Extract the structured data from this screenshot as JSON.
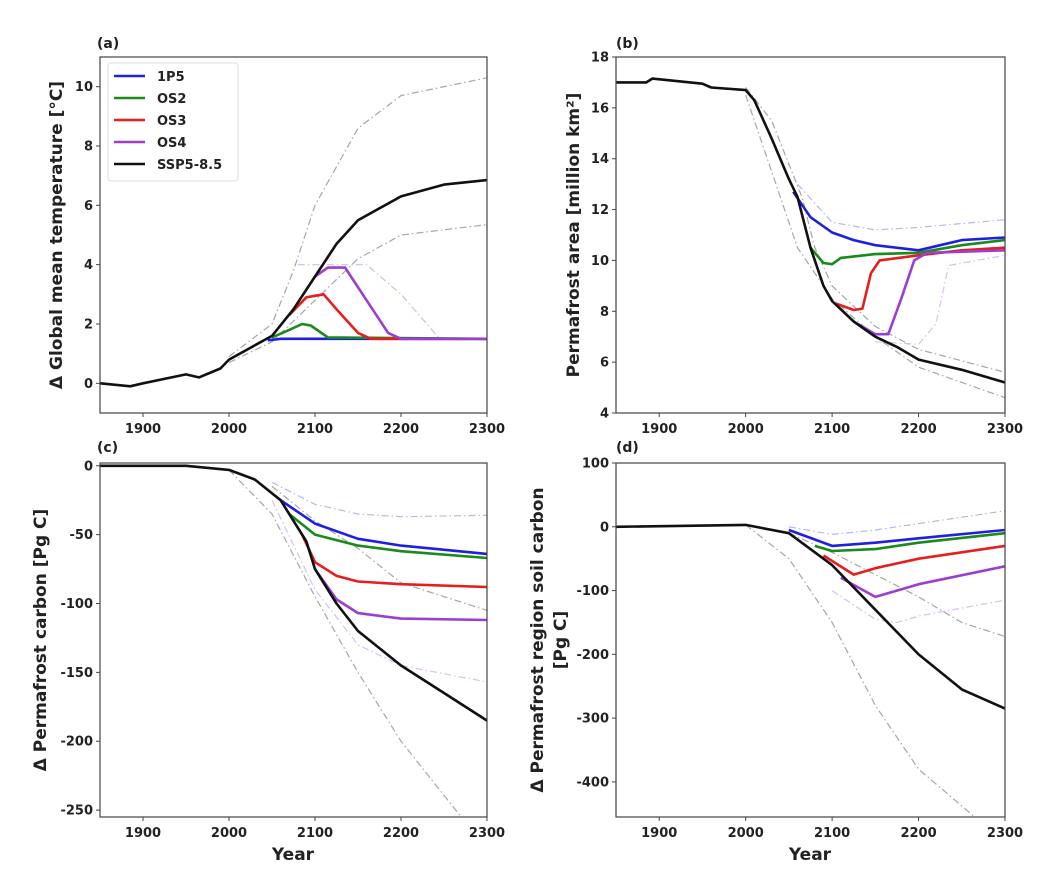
{
  "chart_data": [
    {
      "id": "a",
      "type": "line",
      "panel_label": "(a)",
      "ylabel": "Δ Global mean temperature [°C]",
      "xlabel": "",
      "xlim": [
        1850,
        2300
      ],
      "ylim": [
        -1,
        11
      ],
      "xticks": [
        1900,
        2000,
        2100,
        2200,
        2300
      ],
      "yticks": [
        0,
        2,
        4,
        6,
        8,
        10
      ],
      "legend": {
        "placement": "top-left",
        "entries": [
          {
            "name": "1P5",
            "color": "#1f1fe0"
          },
          {
            "name": "OS2",
            "color": "#1a8a1a"
          },
          {
            "name": "OS3",
            "color": "#e61e1e"
          },
          {
            "name": "OS4",
            "color": "#9a3fd0"
          },
          {
            "name": "SSP5-8.5",
            "color": "#111111"
          }
        ]
      },
      "series": [
        {
          "name": "SSP5-8.5 upper",
          "style": "dashed",
          "color": "#888888",
          "x": [
            2000,
            2050,
            2075,
            2100,
            2150,
            2200,
            2300
          ],
          "y": [
            0.9,
            2,
            3.8,
            6,
            8.6,
            9.7,
            10.3
          ]
        },
        {
          "name": "SSP5-8.5 lower",
          "style": "dashed",
          "color": "#888888",
          "x": [
            2000,
            2050,
            2100,
            2150,
            2200,
            2300
          ],
          "y": [
            0.7,
            1.4,
            2.8,
            4.2,
            5,
            5.35
          ]
        },
        {
          "name": "OS4 upper",
          "style": "dashed",
          "color": "#c9a0e8",
          "x": [
            2080,
            2160,
            2200,
            2245,
            2300
          ],
          "y": [
            4,
            4,
            3,
            1.5,
            1.5
          ]
        },
        {
          "name": "1P5",
          "style": "solid",
          "color": "#1f1fe0",
          "x": [
            2045,
            2060,
            2300
          ],
          "y": [
            1.45,
            1.5,
            1.5
          ]
        },
        {
          "name": "OS2",
          "style": "solid",
          "color": "#1a8a1a",
          "x": [
            2050,
            2070,
            2085,
            2095,
            2115,
            2300
          ],
          "y": [
            1.55,
            1.8,
            2.0,
            1.95,
            1.55,
            1.5
          ]
        },
        {
          "name": "OS3",
          "style": "solid",
          "color": "#e61e1e",
          "x": [
            2070,
            2090,
            2110,
            2125,
            2150,
            2165,
            2300
          ],
          "y": [
            2.3,
            2.9,
            3.0,
            2.5,
            1.7,
            1.5,
            1.5
          ]
        },
        {
          "name": "OS4",
          "style": "solid",
          "color": "#9a3fd0",
          "x": [
            2100,
            2115,
            2135,
            2160,
            2185,
            2200,
            2300
          ],
          "y": [
            3.6,
            3.9,
            3.9,
            2.8,
            1.7,
            1.5,
            1.5
          ]
        },
        {
          "name": "SSP5-8.5",
          "style": "solid",
          "color": "#111111",
          "x": [
            1850,
            1885,
            1900,
            1950,
            1965,
            1990,
            2000,
            2025,
            2050,
            2075,
            2100,
            2125,
            2150,
            2200,
            2250,
            2300
          ],
          "y": [
            0,
            -0.1,
            0,
            0.3,
            0.2,
            0.5,
            0.8,
            1.2,
            1.6,
            2.5,
            3.6,
            4.7,
            5.5,
            6.3,
            6.7,
            6.85
          ]
        }
      ]
    },
    {
      "id": "b",
      "type": "line",
      "panel_label": "(b)",
      "ylabel": "Permafrost area [million km²]",
      "xlabel": "",
      "xlim": [
        1850,
        2300
      ],
      "ylim": [
        4,
        18
      ],
      "xticks": [
        1900,
        2000,
        2100,
        2200,
        2300
      ],
      "yticks": [
        4,
        6,
        8,
        10,
        12,
        14,
        16,
        18
      ],
      "series": [
        {
          "name": "SSP5-8.5 upper",
          "style": "dashed",
          "color": "#888888",
          "x": [
            2000,
            2030,
            2065,
            2080,
            2100,
            2150,
            2200,
            2300
          ],
          "y": [
            16.8,
            15.5,
            12.5,
            10.5,
            9,
            7.4,
            6.5,
            5.6
          ]
        },
        {
          "name": "SSP5-8.5 lower",
          "style": "dashed",
          "color": "#888888",
          "x": [
            2000,
            2030,
            2060,
            2100,
            2150,
            2200,
            2300
          ],
          "y": [
            16.5,
            13.5,
            10.5,
            8.5,
            7,
            5.8,
            4.6
          ]
        },
        {
          "name": "1P5 upper",
          "style": "dashed",
          "color": "#9aa0f0",
          "x": [
            2060,
            2100,
            2150,
            2200,
            2300
          ],
          "y": [
            13,
            11.5,
            11.2,
            11.3,
            11.6
          ]
        },
        {
          "name": "OS4 late",
          "style": "dashed",
          "color": "#d0a8ec",
          "x": [
            2150,
            2200,
            2220,
            2235,
            2300
          ],
          "y": [
            6.8,
            6.7,
            7.5,
            9.8,
            10.2
          ]
        },
        {
          "name": "1P5",
          "style": "solid",
          "color": "#1f1fe0",
          "x": [
            2055,
            2075,
            2100,
            2125,
            2150,
            2200,
            2225,
            2250,
            2300
          ],
          "y": [
            12.7,
            11.7,
            11.1,
            10.8,
            10.6,
            10.4,
            10.6,
            10.8,
            10.9
          ]
        },
        {
          "name": "OS2",
          "style": "solid",
          "color": "#1a8a1a",
          "x": [
            2075,
            2090,
            2100,
            2110,
            2150,
            2200,
            2250,
            2300
          ],
          "y": [
            10.5,
            9.9,
            9.85,
            10.1,
            10.25,
            10.3,
            10.6,
            10.8
          ]
        },
        {
          "name": "OS3",
          "style": "solid",
          "color": "#e61e1e",
          "x": [
            2105,
            2125,
            2135,
            2145,
            2155,
            2200,
            2250,
            2300
          ],
          "y": [
            8.3,
            8.05,
            8.1,
            9.5,
            10.0,
            10.2,
            10.4,
            10.5
          ]
        },
        {
          "name": "OS4",
          "style": "solid",
          "color": "#9a3fd0",
          "x": [
            2130,
            2150,
            2165,
            2180,
            2195,
            2210,
            2300
          ],
          "y": [
            7.5,
            7.1,
            7.1,
            8.5,
            10.0,
            10.3,
            10.4
          ]
        },
        {
          "name": "SSP5-8.5",
          "style": "solid",
          "color": "#111111",
          "x": [
            1850,
            1885,
            1892,
            1950,
            1960,
            2000,
            2010,
            2030,
            2050,
            2060,
            2075,
            2090,
            2100,
            2125,
            2150,
            2175,
            2200,
            2250,
            2300
          ],
          "y": [
            17,
            17,
            17.15,
            16.95,
            16.8,
            16.7,
            16.3,
            14.8,
            13.2,
            12.5,
            10.5,
            9.0,
            8.4,
            7.6,
            7.0,
            6.6,
            6.1,
            5.7,
            5.2
          ]
        }
      ]
    },
    {
      "id": "c",
      "type": "line",
      "panel_label": "(c)",
      "ylabel": "Δ Permafrost carbon [Pg C]",
      "xlabel": "Year",
      "xlim": [
        1850,
        2300
      ],
      "ylim": [
        -255,
        2
      ],
      "xticks": [
        1900,
        2000,
        2100,
        2200,
        2300
      ],
      "yticks": [
        0,
        -50,
        -100,
        -150,
        -200,
        -250
      ],
      "series": [
        {
          "name": "SSP5-8.5 lower",
          "style": "dashed",
          "color": "#888888",
          "x": [
            2000,
            2050,
            2100,
            2150,
            2200,
            2270
          ],
          "y": [
            -3,
            -35,
            -95,
            -150,
            -200,
            -255
          ]
        },
        {
          "name": "SSP5-8.5 upper",
          "style": "dashed",
          "color": "#888888",
          "x": [
            2050,
            2100,
            2150,
            2200,
            2300
          ],
          "y": [
            -15,
            -40,
            -60,
            -85,
            -105
          ]
        },
        {
          "name": "OS4 lower",
          "style": "dashed",
          "color": "#d0a8ec",
          "x": [
            2050,
            2100,
            2150,
            2200,
            2300
          ],
          "y": [
            -25,
            -90,
            -130,
            -145,
            -157
          ]
        },
        {
          "name": "1P5 upper",
          "style": "dashed",
          "color": "#9aa0f0",
          "x": [
            2050,
            2100,
            2150,
            2200,
            2300
          ],
          "y": [
            -12,
            -28,
            -35,
            -37,
            -36
          ]
        },
        {
          "name": "1P5",
          "style": "solid",
          "color": "#1f1fe0",
          "x": [
            2060,
            2100,
            2150,
            2200,
            2300
          ],
          "y": [
            -25,
            -42,
            -53,
            -58,
            -64
          ]
        },
        {
          "name": "OS2",
          "style": "solid",
          "color": "#1a8a1a",
          "x": [
            2070,
            2100,
            2150,
            2200,
            2300
          ],
          "y": [
            -35,
            -50,
            -58,
            -62,
            -67
          ]
        },
        {
          "name": "OS3",
          "style": "solid",
          "color": "#e61e1e",
          "x": [
            2085,
            2100,
            2125,
            2150,
            2200,
            2300
          ],
          "y": [
            -50,
            -70,
            -80,
            -84,
            -86,
            -88
          ]
        },
        {
          "name": "OS4",
          "style": "solid",
          "color": "#9a3fd0",
          "x": [
            2100,
            2125,
            2150,
            2200,
            2300
          ],
          "y": [
            -75,
            -97,
            -107,
            -111,
            -112
          ]
        },
        {
          "name": "SSP5-8.5",
          "style": "solid",
          "color": "#111111",
          "x": [
            1850,
            1950,
            2000,
            2030,
            2060,
            2090,
            2100,
            2125,
            2150,
            2200,
            2250,
            2300
          ],
          "y": [
            0,
            0,
            -3,
            -10,
            -25,
            -55,
            -75,
            -100,
            -120,
            -145,
            -165,
            -185
          ]
        }
      ]
    },
    {
      "id": "d",
      "type": "line",
      "panel_label": "(d)",
      "ylabel": "Δ Permafrost region soil carbon",
      "ylabel2": "[Pg C]",
      "xlabel": "Year",
      "xlim": [
        1850,
        2300
      ],
      "ylim": [
        -455,
        100
      ],
      "xticks": [
        1900,
        2000,
        2100,
        2200,
        2300
      ],
      "yticks": [
        100,
        0,
        -100,
        -200,
        -300,
        -400
      ],
      "series": [
        {
          "name": "SSP5-8.5 lower",
          "style": "dashed",
          "color": "#888888",
          "x": [
            2000,
            2050,
            2100,
            2150,
            2200,
            2265
          ],
          "y": [
            3,
            -50,
            -150,
            -280,
            -380,
            -455
          ]
        },
        {
          "name": "SSP5-8.5 upper",
          "style": "dashed",
          "color": "#888888",
          "x": [
            2050,
            2100,
            2150,
            2200,
            2250,
            2300
          ],
          "y": [
            -10,
            -40,
            -75,
            -110,
            -150,
            -172
          ]
        },
        {
          "name": "1P5 upper",
          "style": "dashed",
          "color": "#9aa0f0",
          "x": [
            2050,
            2100,
            2150,
            2200,
            2300
          ],
          "y": [
            0,
            -12,
            -5,
            5,
            25
          ]
        },
        {
          "name": "OS4 lower",
          "style": "dashed",
          "color": "#d0a8ec",
          "x": [
            2100,
            2150,
            2175,
            2200,
            2300
          ],
          "y": [
            -100,
            -145,
            -150,
            -140,
            -115
          ]
        },
        {
          "name": "1P5",
          "style": "solid",
          "color": "#1f1fe0",
          "x": [
            2050,
            2100,
            2150,
            2200,
            2300
          ],
          "y": [
            -5,
            -30,
            -25,
            -18,
            -5
          ]
        },
        {
          "name": "OS2",
          "style": "solid",
          "color": "#1a8a1a",
          "x": [
            2080,
            2100,
            2150,
            2200,
            2300
          ],
          "y": [
            -30,
            -38,
            -35,
            -25,
            -10
          ]
        },
        {
          "name": "OS3",
          "style": "solid",
          "color": "#e61e1e",
          "x": [
            2090,
            2125,
            2150,
            2200,
            2300
          ],
          "y": [
            -45,
            -75,
            -65,
            -50,
            -30
          ]
        },
        {
          "name": "OS4",
          "style": "solid",
          "color": "#9a3fd0",
          "x": [
            2110,
            2150,
            2175,
            2200,
            2300
          ],
          "y": [
            -80,
            -110,
            -100,
            -90,
            -62
          ]
        },
        {
          "name": "SSP5-8.5",
          "style": "solid",
          "color": "#111111",
          "x": [
            1850,
            2000,
            2050,
            2100,
            2150,
            2200,
            2250,
            2300
          ],
          "y": [
            0,
            3,
            -10,
            -60,
            -130,
            -200,
            -255,
            -285
          ]
        }
      ]
    }
  ]
}
